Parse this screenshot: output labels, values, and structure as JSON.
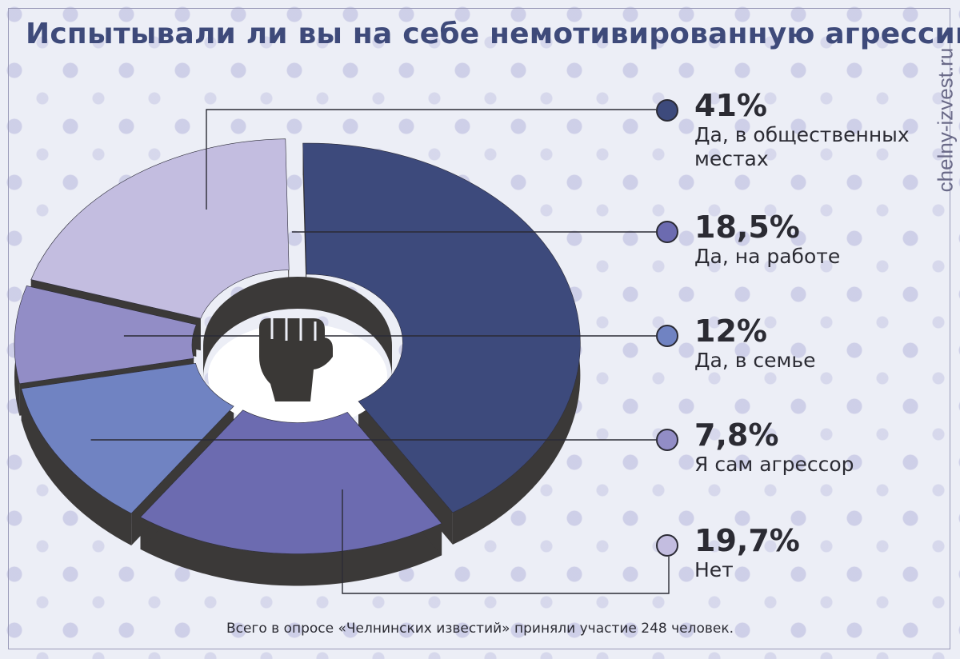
{
  "chart_data": {
    "type": "pie",
    "variant": "donut-3d-exploded",
    "title": "Испытывали ли вы на себе немотивированную агрессию?",
    "series": [
      {
        "label": "Да, в общественных местах",
        "value": 41,
        "display": "41%",
        "color": "#3d4a7c"
      },
      {
        "label": "Да, на работе",
        "value": 18.5,
        "display": "18,5%",
        "color": "#6c6bb0"
      },
      {
        "label": "Да, в семье",
        "value": 12,
        "display": "12%",
        "color": "#7083c2"
      },
      {
        "label": "Я сам агрессор",
        "value": 7.8,
        "display": "7,8%",
        "color": "#928dc6"
      },
      {
        "label": "Нет",
        "value": 19.7,
        "display": "19,7%",
        "color": "#c3bde0"
      }
    ],
    "legend_placement": "right"
  },
  "footnote": "Всего в опросе «Челнинских известий» приняли участие 248 человек.",
  "watermark": "chelny-izvest.ru",
  "colors": {
    "side": "#3b3938",
    "text": "#2b2b33",
    "title": "#3e4a7a"
  },
  "center_icon": "fist-icon"
}
